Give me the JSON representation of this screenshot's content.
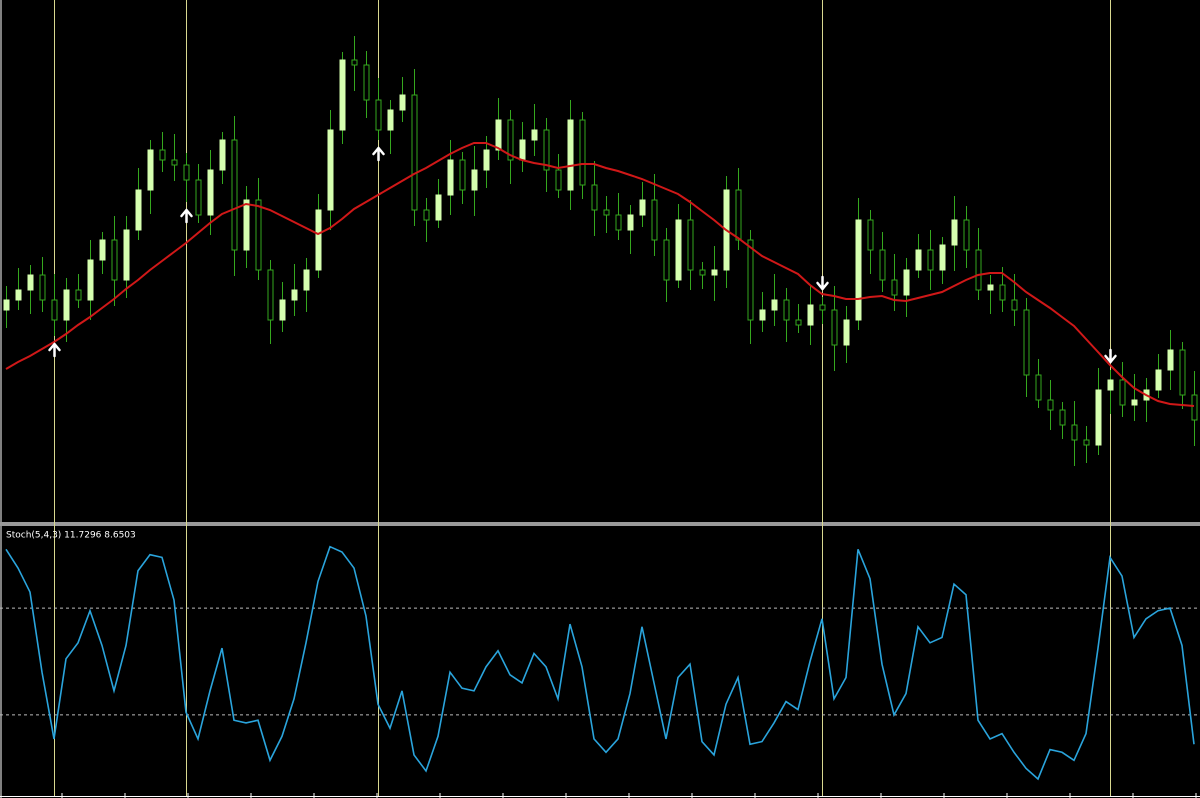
{
  "chart_data": [
    {
      "type": "candlestick",
      "ylim": [
        0,
        520
      ],
      "colors": {
        "bull": "#d6ffb0",
        "bear": "#000000",
        "wick": "#35a81e",
        "signal_line": "#d8d890",
        "arrow": "#ffffff"
      },
      "open": [
        210,
        220,
        230,
        245,
        220,
        200,
        230,
        220,
        260,
        280,
        240,
        290,
        330,
        370,
        360,
        355,
        340,
        305,
        350,
        380,
        270,
        320,
        250,
        200,
        220,
        230,
        250,
        310,
        390,
        460,
        455,
        420,
        390,
        410,
        425,
        310,
        300,
        325,
        360,
        330,
        350,
        370,
        400,
        360,
        380,
        390,
        350,
        330,
        400,
        335,
        310,
        305,
        290,
        305,
        320,
        280,
        240,
        300,
        250,
        245,
        250,
        330,
        280,
        200,
        210,
        220,
        200,
        195,
        215,
        210,
        175,
        200,
        300,
        270,
        240,
        225,
        250,
        270,
        250,
        275,
        300,
        270,
        230,
        235,
        220,
        210,
        145,
        120,
        110,
        95,
        80,
        75,
        130,
        140,
        115,
        120,
        130,
        150,
        170,
        125
      ],
      "high": [
        234,
        252,
        255,
        263,
        246,
        242,
        246,
        280,
        288,
        304,
        304,
        352,
        380,
        388,
        386,
        367,
        356,
        370,
        388,
        404,
        334,
        342,
        260,
        238,
        256,
        262,
        326,
        410,
        468,
        484,
        469,
        442,
        420,
        443,
        451,
        322,
        341,
        380,
        368,
        374,
        384,
        422,
        410,
        398,
        416,
        402,
        366,
        420,
        408,
        359,
        324,
        327,
        315,
        338,
        346,
        292,
        316,
        320,
        258,
        274,
        344,
        352,
        290,
        228,
        246,
        232,
        216,
        235,
        223,
        234,
        214,
        322,
        310,
        288,
        266,
        262,
        286,
        290,
        283,
        324,
        314,
        292,
        245,
        253,
        246,
        222,
        161,
        140,
        118,
        119,
        94,
        152,
        150,
        158,
        146,
        142,
        166,
        190,
        178,
        149
      ],
      "low": [
        192,
        210,
        206,
        208,
        184,
        178,
        212,
        200,
        246,
        214,
        222,
        280,
        306,
        348,
        339,
        318,
        297,
        285,
        336,
        244,
        252,
        240,
        176,
        188,
        204,
        208,
        242,
        290,
        376,
        429,
        402,
        380,
        366,
        398,
        294,
        278,
        292,
        305,
        316,
        304,
        332,
        360,
        336,
        348,
        364,
        328,
        322,
        310,
        321,
        284,
        287,
        280,
        266,
        293,
        264,
        218,
        232,
        230,
        231,
        219,
        232,
        270,
        176,
        188,
        194,
        178,
        187,
        175,
        196,
        149,
        157,
        190,
        246,
        228,
        209,
        203,
        242,
        230,
        236,
        249,
        252,
        220,
        206,
        208,
        194,
        123,
        112,
        90,
        81,
        54,
        57,
        65,
        106,
        103,
        99,
        98,
        122,
        130,
        111,
        74
      ],
      "close": [
        220,
        230,
        245,
        220,
        200,
        230,
        220,
        260,
        280,
        240,
        290,
        330,
        370,
        360,
        355,
        340,
        305,
        350,
        380,
        270,
        320,
        250,
        200,
        220,
        230,
        250,
        310,
        390,
        460,
        455,
        420,
        390,
        410,
        425,
        310,
        300,
        325,
        360,
        330,
        350,
        370,
        400,
        360,
        380,
        390,
        350,
        330,
        400,
        335,
        310,
        305,
        290,
        305,
        320,
        280,
        240,
        300,
        250,
        245,
        250,
        330,
        280,
        200,
        210,
        220,
        200,
        195,
        215,
        210,
        175,
        200,
        300,
        270,
        240,
        225,
        250,
        270,
        250,
        275,
        300,
        270,
        230,
        235,
        220,
        210,
        145,
        120,
        110,
        95,
        80,
        75,
        130,
        140,
        115,
        120,
        130,
        150,
        170,
        125,
        100
      ],
      "ma": {
        "color": "#d01818",
        "values": [
          151,
          158,
          164,
          171,
          178,
          186,
          195,
          203,
          212,
          221,
          231,
          240,
          250,
          259,
          268,
          277,
          287,
          297,
          306,
          311,
          316,
          314,
          310,
          304,
          298,
          292,
          286,
          292,
          301,
          311,
          318,
          325,
          332,
          339,
          346,
          352,
          359,
          366,
          372,
          377,
          377,
          372,
          365,
          360,
          357,
          355,
          352,
          354,
          356,
          356,
          352,
          349,
          345,
          341,
          336,
          331,
          326,
          318,
          309,
          300,
          290,
          282,
          273,
          264,
          258,
          252,
          246,
          235,
          226,
          224,
          221,
          221,
          223,
          224,
          220,
          219,
          222,
          225,
          228,
          234,
          240,
          245,
          247,
          247,
          238,
          228,
          220,
          212,
          203,
          194,
          181,
          168,
          155,
          143,
          132,
          125,
          119,
          116,
          115,
          114
        ]
      },
      "signals": [
        {
          "index": 4,
          "direction": "up"
        },
        {
          "index": 15,
          "direction": "up"
        },
        {
          "index": 31,
          "direction": "up"
        },
        {
          "index": 68,
          "direction": "down"
        },
        {
          "index": 92,
          "direction": "down"
        }
      ]
    },
    {
      "type": "line",
      "label": "Stoch(5,4,3) 11.7296 8.6503",
      "ylim": [
        0,
        100
      ],
      "levels": [
        70,
        30
      ],
      "level_color": "#bbbbbb",
      "series": [
        {
          "color": "#2aa4dc",
          "values": [
            92,
            85,
            76,
            46,
            21,
            51,
            57,
            69,
            56,
            39,
            56,
            84,
            90,
            89,
            73,
            31,
            21,
            39,
            55,
            28,
            27,
            28,
            13,
            22,
            36,
            57,
            80,
            93,
            91,
            85,
            67,
            34,
            25,
            39,
            15,
            9,
            22,
            46,
            40,
            39,
            48,
            54,
            45,
            42,
            53,
            48,
            36,
            64,
            48,
            21,
            16,
            21,
            38,
            63,
            42,
            21,
            44,
            49,
            20,
            15,
            34,
            44,
            19,
            20,
            27,
            35,
            32,
            50,
            66,
            36,
            44,
            92,
            81,
            49,
            30,
            38,
            63,
            57,
            59,
            79,
            75,
            28,
            21,
            23,
            16,
            10,
            6,
            17,
            16,
            13,
            23,
            55,
            89,
            82,
            59,
            66,
            69,
            70,
            56,
            19
          ]
        }
      ]
    }
  ]
}
